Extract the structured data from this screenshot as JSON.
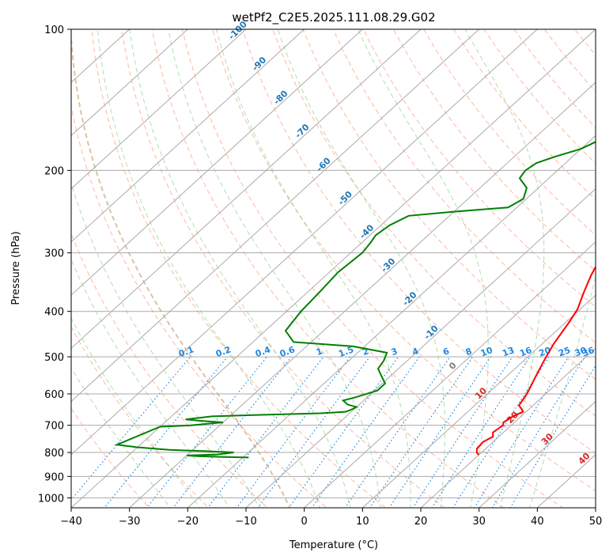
{
  "chart_data": {
    "type": "line",
    "subtype": "skew-t log-p sounding",
    "title": "wetPf2_C2E5.2025.111.08.29.G02",
    "xlabel": "Temperature (°C)",
    "ylabel": "Pressure (hPa)",
    "xlim": [
      -40,
      50
    ],
    "ylim": [
      1050,
      100
    ],
    "y_scale": "log",
    "grid": true,
    "x_ticks": [
      "−40",
      "−30",
      "−20",
      "−10",
      "0",
      "10",
      "20",
      "30",
      "40",
      "50"
    ],
    "y_ticks": [
      "100",
      "200",
      "300",
      "400",
      "500",
      "600",
      "700",
      "800",
      "900",
      "1000"
    ],
    "series": [
      {
        "name": "",
        "color": "#ff0000",
        "points": [
          [
            20.0,
            810
          ],
          [
            19.2,
            800
          ],
          [
            18.5,
            785
          ],
          [
            18.3,
            760
          ],
          [
            19.0,
            740
          ],
          [
            18.2,
            725
          ],
          [
            18.6,
            700
          ],
          [
            18.1,
            690
          ],
          [
            18.6,
            670
          ],
          [
            19.5,
            655
          ],
          [
            18.6,
            645
          ],
          [
            17.6,
            635
          ],
          [
            16.8,
            600
          ],
          [
            15.0,
            550
          ],
          [
            13.5,
            510
          ],
          [
            12.0,
            470
          ],
          [
            10.5,
            420
          ],
          [
            9.5,
            395
          ],
          [
            7.5,
            365
          ],
          [
            5.5,
            335
          ],
          [
            4.0,
            310
          ],
          [
            3.0,
            290
          ],
          [
            3.7,
            275
          ],
          [
            5.0,
            260
          ],
          [
            6.0,
            240
          ],
          [
            7.0,
            220
          ],
          [
            8.0,
            200
          ],
          [
            8.5,
            185
          ],
          [
            8.5,
            170
          ],
          [
            9.0,
            158
          ],
          [
            10.0,
            148
          ],
          [
            11.0,
            140
          ],
          [
            12.0,
            128
          ],
          [
            13.0,
            115
          ],
          [
            13.5,
            106
          ],
          [
            14.0,
            100
          ]
        ]
      },
      {
        "name": "",
        "color": "#008000",
        "points": [
          [
            -19.0,
            820
          ],
          [
            -23.5,
            818
          ],
          [
            -28.0,
            815
          ],
          [
            -30.0,
            812
          ],
          [
            -25.0,
            808
          ],
          [
            -22.5,
            800
          ],
          [
            -27.5,
            795
          ],
          [
            -34.0,
            790
          ],
          [
            -40.0,
            780
          ],
          [
            -44.0,
            770
          ],
          [
            -40.0,
            705
          ],
          [
            -35.0,
            700
          ],
          [
            -30.0,
            690
          ],
          [
            -34.0,
            685
          ],
          [
            -37.0,
            680
          ],
          [
            -33.0,
            670
          ],
          [
            -25.0,
            665
          ],
          [
            -15.0,
            660
          ],
          [
            -11.0,
            655
          ],
          [
            -10.5,
            650
          ],
          [
            -10.0,
            640
          ],
          [
            -12.0,
            632
          ],
          [
            -13.5,
            620
          ],
          [
            -12.0,
            610
          ],
          [
            -9.5,
            590
          ],
          [
            -9.5,
            570
          ],
          [
            -11.5,
            550
          ],
          [
            -13.5,
            530
          ],
          [
            -14.0,
            510
          ],
          [
            -15.0,
            490
          ],
          [
            -22.0,
            475
          ],
          [
            -33.0,
            465
          ],
          [
            -36.5,
            440
          ],
          [
            -37.5,
            400
          ],
          [
            -38.0,
            360
          ],
          [
            -38.5,
            330
          ],
          [
            -38.0,
            300
          ],
          [
            -38.5,
            285
          ],
          [
            -39.0,
            275
          ],
          [
            -38.5,
            262
          ],
          [
            -37.0,
            250
          ],
          [
            -30.0,
            245
          ],
          [
            -21.5,
            240
          ],
          [
            -20.5,
            230
          ],
          [
            -22.0,
            218
          ],
          [
            -25.0,
            208
          ],
          [
            -25.5,
            200
          ],
          [
            -25.0,
            193
          ],
          [
            -23.0,
            187
          ],
          [
            -20.0,
            180
          ],
          [
            -18.0,
            170
          ],
          [
            -16.0,
            160
          ],
          [
            -14.0,
            150
          ],
          [
            -10.5,
            140
          ],
          [
            -8.5,
            130
          ],
          [
            -6.5,
            120
          ],
          [
            -4.0,
            110
          ],
          [
            -1.5,
            100
          ]
        ]
      }
    ],
    "isotherm_labels": [
      "-100",
      "-90",
      "-80",
      "-70",
      "-60",
      "-50",
      "-40",
      "-30",
      "-20",
      "-10",
      "0",
      "10",
      "20",
      "30",
      "40"
    ],
    "mixing_ratio_labels": [
      "0.1",
      "0.2",
      "0.4",
      "0.6",
      "1",
      "1.5",
      "2",
      "3",
      "4",
      "6",
      "8",
      "10",
      "13",
      "16",
      "20",
      "25",
      "30",
      "36"
    ]
  },
  "colors": {
    "temperature": "#ff0000",
    "dewpoint": "#008000",
    "isotherm_grid": "#aaaaaa",
    "dry_adiabat": "#ff9f80",
    "moist_adiabat": "#5fbf5f",
    "mixing_ratio": "#1e88e5",
    "isotherm_label_cold": "#1f77b4",
    "isotherm_label_zero": "#7f7f7f",
    "isotherm_label_warm": "#d62728",
    "freezing_adiabat": "#d2b48c"
  }
}
